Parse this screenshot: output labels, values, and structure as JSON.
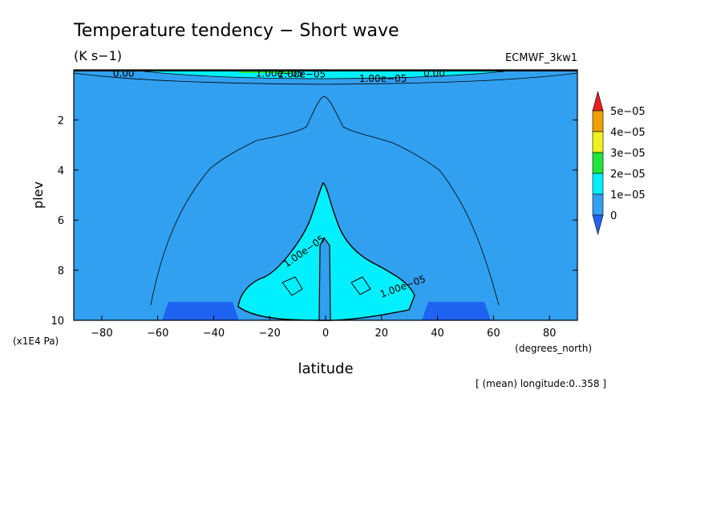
{
  "chart_data": {
    "type": "heatmap",
    "title": "Temperature tendency − Short wave",
    "units": "(K s−1)",
    "dataset_label": "ECMWF_3kw1",
    "xlabel": "latitude",
    "x_units": "(degrees_north)",
    "ylabel": "plev",
    "y_units": "(x1E4 Pa)",
    "footer": "[ (mean) longitude:0..358 ]",
    "xlim": [
      -90,
      90
    ],
    "ylim": [
      10,
      0
    ],
    "x_ticks": [
      -80,
      -60,
      -40,
      -20,
      0,
      20,
      40,
      60,
      80
    ],
    "x_tick_labels": [
      "−80",
      "−60",
      "−40",
      "−20",
      "0",
      "20",
      "40",
      "60",
      "80"
    ],
    "y_ticks": [
      2,
      4,
      6,
      8,
      10
    ],
    "y_tick_labels": [
      "2",
      "4",
      "6",
      "8",
      "10"
    ],
    "colorbar": {
      "levels": [
        0,
        1e-05,
        2e-05,
        3e-05,
        4e-05,
        5e-05
      ],
      "labels": [
        "0",
        "1e−05",
        "2e−05",
        "3e−05",
        "4e−05",
        "5e−05"
      ],
      "colors": [
        "#1e64f0",
        "#32a0f0",
        "#00f0ff",
        "#1ee63c",
        "#f0f01e",
        "#f0a000",
        "#e61e1e"
      ]
    },
    "contour_labels": [
      {
        "text": "0.00",
        "x": -76,
        "y": 0.05
      },
      {
        "text": "1.00e−05",
        "x": -25,
        "y": 0.05
      },
      {
        "text": "2.00e−05",
        "x": -17,
        "y": 0.08
      },
      {
        "text": "1.00e−05",
        "x": 12,
        "y": 0.25
      },
      {
        "text": "0.00",
        "x": 35,
        "y": 0.05
      },
      {
        "text": "1.00e−05",
        "x": -14,
        "y": 7.9
      },
      {
        "text": "1.00e−05",
        "x": 20,
        "y": 9.1
      }
    ],
    "regions": {
      "background_level": "0 to 1e-05",
      "band_1e5_2e5": {
        "lats": [
          -30,
          -25,
          -20,
          -15,
          -10,
          -5,
          -2,
          0,
          2,
          5,
          10,
          15,
          20,
          25,
          30
        ],
        "plev_top": [
          9.2,
          8.8,
          8.3,
          7.5,
          6.8,
          5.8,
          4.8,
          4.6,
          4.8,
          5.8,
          6.8,
          7.5,
          8.3,
          8.8,
          9.2
        ],
        "plev_bottom": [
          10,
          10,
          10,
          10,
          10,
          10,
          10,
          10,
          10,
          10,
          10,
          10,
          10,
          10,
          10
        ]
      },
      "near_zero_surface_left": {
        "lat_range": [
          -56,
          -33
        ],
        "plev_range": [
          9.2,
          10
        ]
      },
      "near_zero_surface_right": {
        "lat_range": [
          35,
          58
        ],
        "plev_range": [
          9.2,
          10
        ]
      },
      "top_band": {
        "plev_range": [
          0,
          0.12
        ],
        "max_level": "2e-05 to 3e-05"
      }
    }
  }
}
